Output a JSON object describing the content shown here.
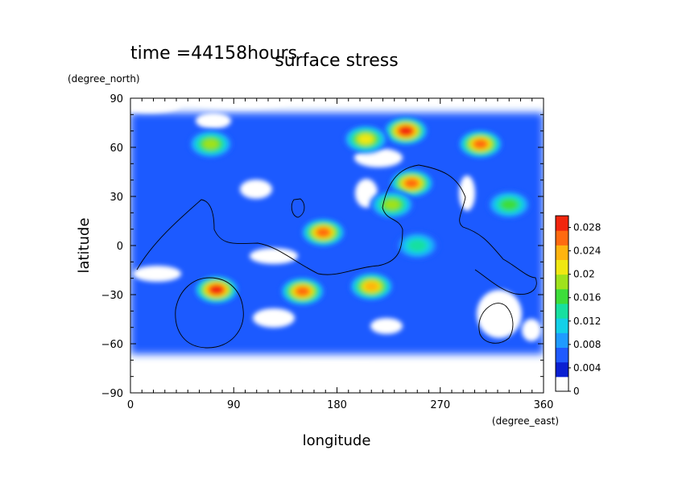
{
  "chart_data": {
    "type": "heatmap",
    "time_label": "time =44158hours",
    "title": "surface stress",
    "xlabel": "longitude",
    "ylabel": "latitude",
    "xunit": "(degree_east)",
    "yunit": "(degree_north)",
    "xlim": [
      0,
      360
    ],
    "ylim": [
      -90,
      90
    ],
    "xticks": [
      "0",
      "90",
      "180",
      "270",
      "360"
    ],
    "yticks": [
      "90",
      "60",
      "30",
      "0",
      "−30",
      "−60",
      "−90"
    ],
    "xtick_values": [
      0,
      90,
      180,
      270,
      360
    ],
    "ytick_values": [
      90,
      60,
      30,
      0,
      -30,
      -60,
      -90
    ],
    "colorbar": {
      "range": [
        0,
        0.03
      ],
      "labels": [
        "0.028",
        "0.024",
        "0.02",
        "0.016",
        "0.012",
        "0.008",
        "0.004",
        "0"
      ],
      "label_values": [
        0.028,
        0.024,
        0.02,
        0.016,
        0.012,
        0.008,
        0.004,
        0
      ],
      "colors": [
        "#ffffff",
        "#0a1fd2",
        "#1f5aff",
        "#1f9bff",
        "#13d0e8",
        "#17e0a0",
        "#3ddd3a",
        "#9fe21c",
        "#f0e812",
        "#ffb40f",
        "#ff6a10",
        "#f2260e"
      ]
    },
    "hotspots": [
      {
        "lon": 240,
        "lat": 70,
        "value": 0.029
      },
      {
        "lon": 305,
        "lat": 62,
        "value": 0.028
      },
      {
        "lon": 205,
        "lat": 65,
        "value": 0.022
      },
      {
        "lon": 245,
        "lat": 38,
        "value": 0.027
      },
      {
        "lon": 228,
        "lat": 25,
        "value": 0.02
      },
      {
        "lon": 168,
        "lat": 8,
        "value": 0.026
      },
      {
        "lon": 75,
        "lat": -27,
        "value": 0.029
      },
      {
        "lon": 150,
        "lat": -28,
        "value": 0.027
      },
      {
        "lon": 210,
        "lat": -25,
        "value": 0.025
      },
      {
        "lon": 70,
        "lat": 62,
        "value": 0.018
      },
      {
        "lon": 330,
        "lat": 25,
        "value": 0.016
      },
      {
        "lon": 250,
        "lat": 0,
        "value": 0.014
      }
    ]
  }
}
